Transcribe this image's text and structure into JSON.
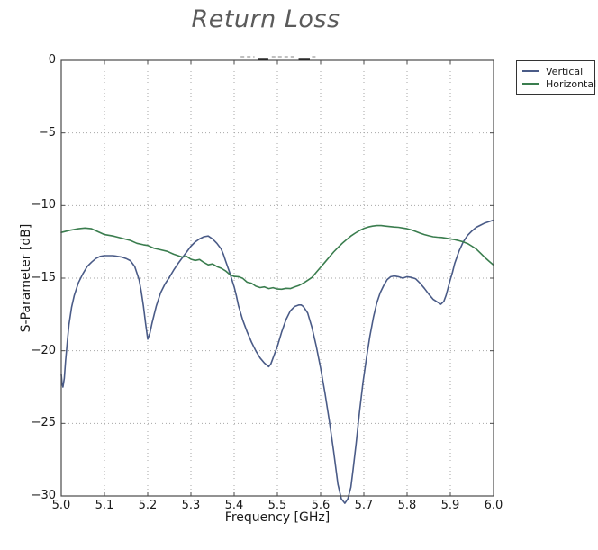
{
  "title": "Return Loss",
  "chart_data": {
    "type": "line",
    "title": "Return Loss",
    "xlabel": "Frequency [GHz]",
    "ylabel": "S-Parameter [dB]",
    "xlim": [
      5.0,
      6.0
    ],
    "ylim": [
      -30,
      0
    ],
    "grid": "dotted",
    "xticks": {
      "values": [
        5.0,
        5.1,
        5.2,
        5.3,
        5.4,
        5.5,
        5.6,
        5.7,
        5.8,
        5.9,
        6.0
      ],
      "labels": [
        "5.0",
        "5.1",
        "5.2",
        "5.3",
        "5.4",
        "5.5",
        "5.6",
        "5.7",
        "5.8",
        "5.9",
        "6.0"
      ]
    },
    "yticks": {
      "values": [
        0,
        -5,
        -10,
        -15,
        -20,
        -25,
        -30
      ],
      "labels": [
        "0",
        "−5",
        "−10",
        "−15",
        "−20",
        "−25",
        "−30"
      ]
    },
    "legend": {
      "position": "upper-right-outside",
      "entries": [
        {
          "label": "Vertical",
          "color": "#4a5b87"
        },
        {
          "label": "Horizontal",
          "color": "#3a7d4e"
        }
      ]
    },
    "series": [
      {
        "name": "Vertical",
        "color": "#4a5b87",
        "points": [
          [
            5.0,
            -21.6
          ],
          [
            5.002,
            -22.3
          ],
          [
            5.004,
            -22.5
          ],
          [
            5.007,
            -21.9
          ],
          [
            5.01,
            -20.7
          ],
          [
            5.014,
            -19.4
          ],
          [
            5.018,
            -18.2
          ],
          [
            5.024,
            -17.0
          ],
          [
            5.03,
            -16.2
          ],
          [
            5.04,
            -15.3
          ],
          [
            5.05,
            -14.7
          ],
          [
            5.06,
            -14.2
          ],
          [
            5.07,
            -13.9
          ],
          [
            5.08,
            -13.65
          ],
          [
            5.09,
            -13.5
          ],
          [
            5.1,
            -13.45
          ],
          [
            5.12,
            -13.45
          ],
          [
            5.13,
            -13.5
          ],
          [
            5.14,
            -13.55
          ],
          [
            5.15,
            -13.65
          ],
          [
            5.16,
            -13.8
          ],
          [
            5.17,
            -14.2
          ],
          [
            5.18,
            -15.1
          ],
          [
            5.185,
            -15.9
          ],
          [
            5.19,
            -16.9
          ],
          [
            5.195,
            -18.1
          ],
          [
            5.2,
            -19.2
          ],
          [
            5.205,
            -18.8
          ],
          [
            5.21,
            -18.1
          ],
          [
            5.22,
            -16.9
          ],
          [
            5.23,
            -16.0
          ],
          [
            5.24,
            -15.4
          ],
          [
            5.25,
            -14.95
          ],
          [
            5.26,
            -14.45
          ],
          [
            5.27,
            -14.0
          ],
          [
            5.28,
            -13.6
          ],
          [
            5.29,
            -13.2
          ],
          [
            5.3,
            -12.8
          ],
          [
            5.31,
            -12.5
          ],
          [
            5.32,
            -12.3
          ],
          [
            5.33,
            -12.15
          ],
          [
            5.34,
            -12.1
          ],
          [
            5.35,
            -12.3
          ],
          [
            5.36,
            -12.6
          ],
          [
            5.37,
            -13.0
          ],
          [
            5.375,
            -13.35
          ],
          [
            5.38,
            -13.8
          ],
          [
            5.39,
            -14.65
          ],
          [
            5.4,
            -15.6
          ],
          [
            5.405,
            -16.2
          ],
          [
            5.41,
            -16.9
          ],
          [
            5.42,
            -17.9
          ],
          [
            5.43,
            -18.7
          ],
          [
            5.44,
            -19.4
          ],
          [
            5.45,
            -20.0
          ],
          [
            5.46,
            -20.5
          ],
          [
            5.47,
            -20.85
          ],
          [
            5.48,
            -21.1
          ],
          [
            5.485,
            -20.9
          ],
          [
            5.49,
            -20.5
          ],
          [
            5.5,
            -19.7
          ],
          [
            5.51,
            -18.7
          ],
          [
            5.52,
            -17.85
          ],
          [
            5.53,
            -17.25
          ],
          [
            5.54,
            -16.95
          ],
          [
            5.55,
            -16.85
          ],
          [
            5.555,
            -16.85
          ],
          [
            5.56,
            -16.95
          ],
          [
            5.57,
            -17.4
          ],
          [
            5.58,
            -18.4
          ],
          [
            5.59,
            -19.7
          ],
          [
            5.6,
            -21.2
          ],
          [
            5.61,
            -22.9
          ],
          [
            5.62,
            -24.8
          ],
          [
            5.63,
            -26.9
          ],
          [
            5.64,
            -29.2
          ],
          [
            5.648,
            -30.2
          ],
          [
            5.656,
            -30.5
          ],
          [
            5.663,
            -30.2
          ],
          [
            5.67,
            -29.4
          ],
          [
            5.675,
            -28.2
          ],
          [
            5.682,
            -26.4
          ],
          [
            5.69,
            -24.2
          ],
          [
            5.698,
            -22.2
          ],
          [
            5.706,
            -20.5
          ],
          [
            5.714,
            -19.0
          ],
          [
            5.722,
            -17.7
          ],
          [
            5.73,
            -16.7
          ],
          [
            5.738,
            -16.0
          ],
          [
            5.746,
            -15.5
          ],
          [
            5.754,
            -15.1
          ],
          [
            5.762,
            -14.9
          ],
          [
            5.77,
            -14.85
          ],
          [
            5.78,
            -14.9
          ],
          [
            5.79,
            -15.0
          ],
          [
            5.8,
            -14.9
          ],
          [
            5.81,
            -14.95
          ],
          [
            5.82,
            -15.05
          ],
          [
            5.83,
            -15.35
          ],
          [
            5.84,
            -15.7
          ],
          [
            5.85,
            -16.1
          ],
          [
            5.86,
            -16.45
          ],
          [
            5.87,
            -16.65
          ],
          [
            5.878,
            -16.8
          ],
          [
            5.885,
            -16.6
          ],
          [
            5.89,
            -16.2
          ],
          [
            5.9,
            -15.1
          ],
          [
            5.905,
            -14.6
          ],
          [
            5.91,
            -14.0
          ],
          [
            5.92,
            -13.15
          ],
          [
            5.93,
            -12.5
          ],
          [
            5.94,
            -12.05
          ],
          [
            5.95,
            -11.75
          ],
          [
            5.96,
            -11.5
          ],
          [
            5.97,
            -11.35
          ],
          [
            5.98,
            -11.2
          ],
          [
            5.99,
            -11.1
          ],
          [
            6.0,
            -11.0
          ]
        ]
      },
      {
        "name": "Horizontal",
        "color": "#3a7d4e",
        "points": [
          [
            5.0,
            -11.85
          ],
          [
            5.02,
            -11.7
          ],
          [
            5.04,
            -11.6
          ],
          [
            5.055,
            -11.55
          ],
          [
            5.07,
            -11.6
          ],
          [
            5.085,
            -11.8
          ],
          [
            5.1,
            -12.0
          ],
          [
            5.12,
            -12.1
          ],
          [
            5.14,
            -12.25
          ],
          [
            5.16,
            -12.4
          ],
          [
            5.175,
            -12.6
          ],
          [
            5.19,
            -12.7
          ],
          [
            5.2,
            -12.75
          ],
          [
            5.215,
            -12.95
          ],
          [
            5.23,
            -13.05
          ],
          [
            5.245,
            -13.15
          ],
          [
            5.26,
            -13.35
          ],
          [
            5.27,
            -13.45
          ],
          [
            5.28,
            -13.55
          ],
          [
            5.29,
            -13.5
          ],
          [
            5.3,
            -13.7
          ],
          [
            5.31,
            -13.78
          ],
          [
            5.32,
            -13.72
          ],
          [
            5.33,
            -13.92
          ],
          [
            5.34,
            -14.08
          ],
          [
            5.35,
            -14.02
          ],
          [
            5.36,
            -14.2
          ],
          [
            5.37,
            -14.32
          ],
          [
            5.38,
            -14.5
          ],
          [
            5.39,
            -14.75
          ],
          [
            5.4,
            -14.88
          ],
          [
            5.41,
            -14.9
          ],
          [
            5.42,
            -15.02
          ],
          [
            5.43,
            -15.28
          ],
          [
            5.44,
            -15.35
          ],
          [
            5.45,
            -15.55
          ],
          [
            5.46,
            -15.65
          ],
          [
            5.47,
            -15.6
          ],
          [
            5.48,
            -15.72
          ],
          [
            5.49,
            -15.66
          ],
          [
            5.5,
            -15.75
          ],
          [
            5.51,
            -15.76
          ],
          [
            5.52,
            -15.7
          ],
          [
            5.53,
            -15.72
          ],
          [
            5.54,
            -15.6
          ],
          [
            5.55,
            -15.5
          ],
          [
            5.56,
            -15.35
          ],
          [
            5.57,
            -15.15
          ],
          [
            5.575,
            -15.05
          ],
          [
            5.58,
            -14.95
          ],
          [
            5.59,
            -14.6
          ],
          [
            5.6,
            -14.25
          ],
          [
            5.61,
            -13.9
          ],
          [
            5.62,
            -13.55
          ],
          [
            5.63,
            -13.2
          ],
          [
            5.64,
            -12.9
          ],
          [
            5.65,
            -12.6
          ],
          [
            5.66,
            -12.35
          ],
          [
            5.67,
            -12.1
          ],
          [
            5.68,
            -11.9
          ],
          [
            5.69,
            -11.72
          ],
          [
            5.7,
            -11.58
          ],
          [
            5.71,
            -11.48
          ],
          [
            5.72,
            -11.42
          ],
          [
            5.73,
            -11.38
          ],
          [
            5.74,
            -11.38
          ],
          [
            5.75,
            -11.42
          ],
          [
            5.76,
            -11.45
          ],
          [
            5.77,
            -11.48
          ],
          [
            5.78,
            -11.5
          ],
          [
            5.79,
            -11.55
          ],
          [
            5.8,
            -11.6
          ],
          [
            5.81,
            -11.68
          ],
          [
            5.82,
            -11.78
          ],
          [
            5.83,
            -11.9
          ],
          [
            5.84,
            -12.0
          ],
          [
            5.85,
            -12.08
          ],
          [
            5.86,
            -12.15
          ],
          [
            5.87,
            -12.18
          ],
          [
            5.88,
            -12.2
          ],
          [
            5.89,
            -12.25
          ],
          [
            5.9,
            -12.3
          ],
          [
            5.91,
            -12.35
          ],
          [
            5.92,
            -12.42
          ],
          [
            5.93,
            -12.5
          ],
          [
            5.94,
            -12.62
          ],
          [
            5.95,
            -12.8
          ],
          [
            5.96,
            -13.0
          ],
          [
            5.97,
            -13.28
          ],
          [
            5.98,
            -13.58
          ],
          [
            5.99,
            -13.85
          ],
          [
            6.0,
            -14.1
          ]
        ]
      }
    ],
    "annotation_dashes": {
      "description": "faint clipped dashed marks just above top axis",
      "segments": [
        {
          "x1": 5.415,
          "x2": 5.447,
          "shade": "faint"
        },
        {
          "x1": 5.456,
          "x2": 5.479,
          "shade": "dark"
        },
        {
          "x1": 5.487,
          "x2": 5.538,
          "shade": "faint"
        },
        {
          "x1": 5.549,
          "x2": 5.575,
          "shade": "dark"
        },
        {
          "x1": 5.58,
          "x2": 5.592,
          "shade": "faint"
        }
      ]
    },
    "style": {
      "frame_color": "#4a4a4a",
      "grid_color": "#a6a6a6",
      "tick_label_color": "#1a1a1a",
      "title_color": "#5b5b5b",
      "background": "#ffffff",
      "annotation_faint_color": "#9a9a9a",
      "annotation_dark_color": "#1a1a1a"
    }
  }
}
